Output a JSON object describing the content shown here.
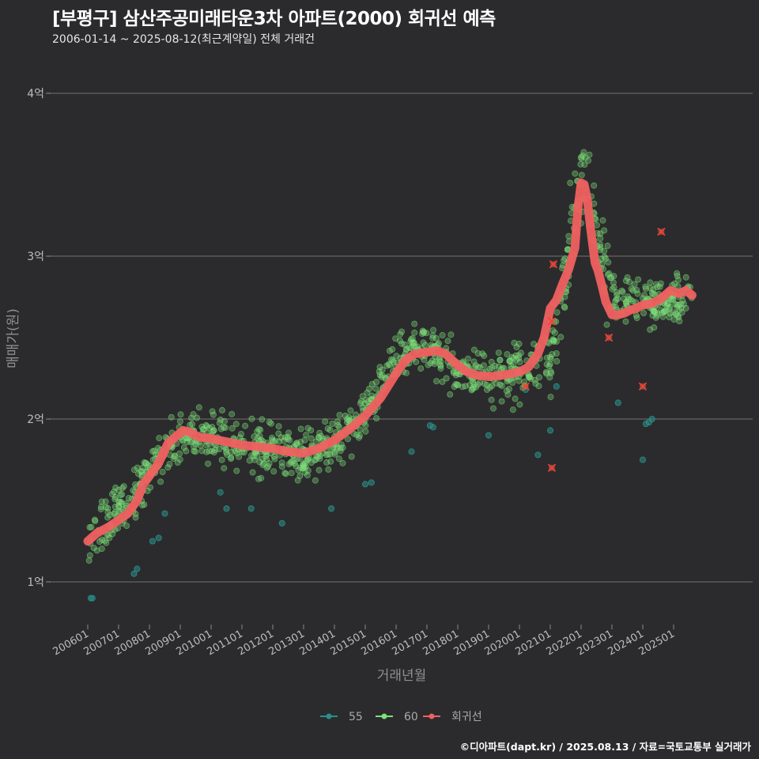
{
  "header": {
    "title": "[부평구] 삼산주공미래타운3차 아파트(2000) 회귀선 예측",
    "subtitle": "2006-01-14 ~ 2025-08-12(최근계약일) 전체 거래건"
  },
  "caption": "©디아파트(dapt.kr) / 2025.08.13 / 자료=국토교통부 실거래가",
  "colors": {
    "background": "#2b2b2d",
    "grid": "#5a5a5a",
    "series_55": "#2a8f8a",
    "series_60": "#7ee07a",
    "regression": "#f06060",
    "cancel_mark": "#ff3b3b"
  },
  "chart_data": {
    "type": "scatter",
    "title": "[부평구] 삼산주공미래타운3차 아파트(2000) 회귀선 예측",
    "xlabel": "거래년월",
    "ylabel": "매매가(원)",
    "xlim": [
      2005.5,
      2026.2
    ],
    "ylim": [
      0.78,
      4.2
    ],
    "y_unit": "억",
    "y_ticks": [
      {
        "value": 1,
        "label": "1억"
      },
      {
        "value": 2,
        "label": "2억"
      },
      {
        "value": 3,
        "label": "3억"
      },
      {
        "value": 4,
        "label": "4억"
      }
    ],
    "x_ticks": [
      {
        "value": 2006,
        "label": "200601"
      },
      {
        "value": 2007,
        "label": "200701"
      },
      {
        "value": 2008,
        "label": "200801"
      },
      {
        "value": 2009,
        "label": "200901"
      },
      {
        "value": 2010,
        "label": "201001"
      },
      {
        "value": 2011,
        "label": "201101"
      },
      {
        "value": 2012,
        "label": "201201"
      },
      {
        "value": 2013,
        "label": "201301"
      },
      {
        "value": 2014,
        "label": "201401"
      },
      {
        "value": 2015,
        "label": "201501"
      },
      {
        "value": 2016,
        "label": "201601"
      },
      {
        "value": 2017,
        "label": "201701"
      },
      {
        "value": 2018,
        "label": "201801"
      },
      {
        "value": 2019,
        "label": "201901"
      },
      {
        "value": 2020,
        "label": "202001"
      },
      {
        "value": 2021,
        "label": "202101"
      },
      {
        "value": 2022,
        "label": "202201"
      },
      {
        "value": 2023,
        "label": "202301"
      },
      {
        "value": 2024,
        "label": "202401"
      },
      {
        "value": 2025,
        "label": "202501"
      }
    ],
    "legend": [
      {
        "key": "55",
        "label": "55",
        "color": "#2a8f8a"
      },
      {
        "key": "60",
        "label": "60",
        "color": "#7ee07a"
      },
      {
        "key": "reg",
        "label": "회귀선",
        "color": "#f06060"
      }
    ],
    "legend_position": "bottom",
    "regression_line": {
      "name": "회귀선",
      "x": [
        2006.0,
        2006.3,
        2006.7,
        2007.0,
        2007.3,
        2007.6,
        2007.8,
        2008.0,
        2008.3,
        2008.6,
        2008.9,
        2009.1,
        2009.3,
        2009.6,
        2010.0,
        2010.5,
        2011.0,
        2011.5,
        2012.0,
        2012.5,
        2013.0,
        2013.5,
        2014.0,
        2014.5,
        2015.0,
        2015.5,
        2016.0,
        2016.3,
        2016.6,
        2017.0,
        2017.3,
        2017.6,
        2018.0,
        2018.3,
        2018.6,
        2019.0,
        2019.5,
        2020.0,
        2020.3,
        2020.6,
        2020.8,
        2021.0,
        2021.2,
        2021.4,
        2021.6,
        2021.8,
        2021.9,
        2022.0,
        2022.1,
        2022.2,
        2022.3,
        2022.45,
        2022.55,
        2022.7,
        2022.8,
        2023.0,
        2023.2,
        2023.4,
        2023.6,
        2023.8,
        2024.0,
        2024.3,
        2024.6,
        2024.9,
        2025.2,
        2025.4,
        2025.6
      ],
      "y": [
        1.25,
        1.3,
        1.34,
        1.38,
        1.42,
        1.5,
        1.6,
        1.65,
        1.73,
        1.85,
        1.9,
        1.93,
        1.92,
        1.89,
        1.88,
        1.86,
        1.84,
        1.83,
        1.82,
        1.8,
        1.79,
        1.82,
        1.87,
        1.94,
        2.02,
        2.13,
        2.28,
        2.36,
        2.4,
        2.41,
        2.42,
        2.4,
        2.33,
        2.29,
        2.27,
        2.26,
        2.27,
        2.29,
        2.32,
        2.4,
        2.5,
        2.68,
        2.73,
        2.83,
        2.92,
        3.05,
        3.3,
        3.45,
        3.44,
        3.35,
        3.18,
        2.96,
        2.91,
        2.8,
        2.72,
        2.64,
        2.64,
        2.65,
        2.67,
        2.68,
        2.7,
        2.71,
        2.74,
        2.79,
        2.77,
        2.79,
        2.76
      ]
    },
    "canceled_trades": [
      {
        "x": 2020.2,
        "y": 2.2
      },
      {
        "x": 2021.05,
        "y": 2.6
      },
      {
        "x": 2021.1,
        "y": 2.95
      },
      {
        "x": 2021.05,
        "y": 1.7
      },
      {
        "x": 2022.9,
        "y": 2.5
      },
      {
        "x": 2024.0,
        "y": 2.2
      },
      {
        "x": 2024.6,
        "y": 3.15
      }
    ],
    "series_55_points": [
      {
        "x": 2006.1,
        "y": 0.9
      },
      {
        "x": 2006.15,
        "y": 0.9
      },
      {
        "x": 2007.5,
        "y": 1.05
      },
      {
        "x": 2007.6,
        "y": 1.08
      },
      {
        "x": 2008.1,
        "y": 1.25
      },
      {
        "x": 2008.3,
        "y": 1.27
      },
      {
        "x": 2008.5,
        "y": 1.42
      },
      {
        "x": 2010.3,
        "y": 1.55
      },
      {
        "x": 2010.5,
        "y": 1.45
      },
      {
        "x": 2011.3,
        "y": 1.45
      },
      {
        "x": 2012.3,
        "y": 1.36
      },
      {
        "x": 2013.9,
        "y": 1.45
      },
      {
        "x": 2015.0,
        "y": 1.6
      },
      {
        "x": 2015.2,
        "y": 1.61
      },
      {
        "x": 2016.5,
        "y": 1.8
      },
      {
        "x": 2017.1,
        "y": 1.96
      },
      {
        "x": 2017.2,
        "y": 1.95
      },
      {
        "x": 2019.0,
        "y": 1.9
      },
      {
        "x": 2020.2,
        "y": 2.18
      },
      {
        "x": 2020.6,
        "y": 1.78
      },
      {
        "x": 2021.2,
        "y": 2.2
      },
      {
        "x": 2021.0,
        "y": 1.93
      },
      {
        "x": 2023.2,
        "y": 2.1
      },
      {
        "x": 2024.0,
        "y": 1.75
      },
      {
        "x": 2024.1,
        "y": 1.97
      },
      {
        "x": 2024.2,
        "y": 1.98
      },
      {
        "x": 2024.3,
        "y": 2.0
      }
    ],
    "series_60_trend": {
      "x": [
        2006.0,
        2007.0,
        2008.0,
        2009.0,
        2010.0,
        2011.0,
        2012.0,
        2013.0,
        2014.0,
        2015.0,
        2016.0,
        2017.0,
        2018.0,
        2019.0,
        2020.0,
        2021.0,
        2021.5,
        2021.9,
        2022.2,
        2022.6,
        2023.0,
        2024.0,
        2025.0,
        2025.6
      ],
      "y": [
        1.22,
        1.42,
        1.68,
        1.9,
        1.9,
        1.82,
        1.82,
        1.77,
        1.85,
        2.02,
        2.38,
        2.45,
        2.3,
        2.26,
        2.28,
        2.4,
        2.9,
        3.4,
        3.5,
        3.1,
        2.75,
        2.7,
        2.72,
        2.75
      ],
      "spread": 0.12,
      "count": 1100
    }
  }
}
